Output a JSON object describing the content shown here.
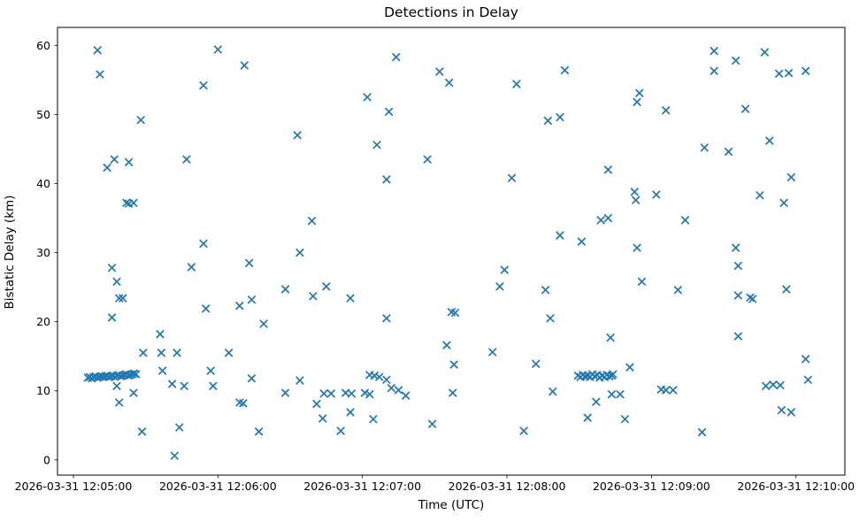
{
  "chart_data": {
    "type": "scatter",
    "title": "Detections in Delay",
    "xlabel": "Time (UTC)",
    "ylabel": "Bistatic Delay (km)",
    "marker": "x",
    "marker_color": "#1f77b4",
    "grid": false,
    "x_axis_note": "x values are seconds after 2026-03-31 12:05:00 UTC",
    "xlim_seconds": [
      -6.6,
      320.3
    ],
    "ylim": [
      -2.2,
      62.6
    ],
    "xtick_seconds": [
      0,
      60,
      120,
      180,
      240,
      300
    ],
    "xtick_labels": [
      "2026-03-31 12:05:00",
      "2026-03-31 12:06:00",
      "2026-03-31 12:07:00",
      "2026-03-31 12:08:00",
      "2026-03-31 12:09:00",
      "2026-03-31 12:10:00"
    ],
    "ytick_values": [
      0,
      10,
      20,
      30,
      40,
      50,
      60
    ],
    "ytick_labels": [
      "0",
      "10",
      "20",
      "30",
      "40",
      "50",
      "60"
    ],
    "points": [
      [
        6,
        11.9
      ],
      [
        6.8,
        12.0
      ],
      [
        7.6,
        11.8
      ],
      [
        8.4,
        12.0
      ],
      [
        9.2,
        12.1
      ],
      [
        10,
        11.9
      ],
      [
        10.8,
        12.0
      ],
      [
        11.6,
        12.1
      ],
      [
        12.4,
        12.0
      ],
      [
        13.2,
        12.1
      ],
      [
        14,
        12.2
      ],
      [
        14.8,
        12.0
      ],
      [
        15.6,
        12.1
      ],
      [
        16.4,
        12.2
      ],
      [
        17.2,
        12.0
      ],
      [
        18,
        12.2
      ],
      [
        18.8,
        12.3
      ],
      [
        19.6,
        12.1
      ],
      [
        20.4,
        12.2
      ],
      [
        21.2,
        12.3
      ],
      [
        22,
        12.4
      ],
      [
        22.8,
        12.2
      ],
      [
        23.6,
        12.3
      ],
      [
        24.4,
        12.4
      ],
      [
        25.2,
        12.5
      ],
      [
        26,
        12.4
      ],
      [
        209.5,
        12.2
      ],
      [
        210.5,
        12.0
      ],
      [
        211.5,
        12.3
      ],
      [
        212.5,
        12.1
      ],
      [
        213.5,
        12.2
      ],
      [
        214.5,
        12.0
      ],
      [
        215.5,
        12.4
      ],
      [
        216.5,
        12.1
      ],
      [
        217.5,
        12.3
      ],
      [
        218.5,
        11.9
      ],
      [
        219.5,
        12.2
      ],
      [
        220.5,
        12.0
      ],
      [
        221.5,
        12.3
      ],
      [
        222.5,
        12.1
      ],
      [
        223.5,
        12.2
      ],
      [
        224,
        12.4
      ],
      [
        123,
        12.3
      ],
      [
        125,
        12.2
      ],
      [
        127,
        12.0
      ],
      [
        130,
        11.6
      ],
      [
        10,
        59.3
      ],
      [
        11,
        55.8
      ],
      [
        14,
        42.3
      ],
      [
        16,
        27.8
      ],
      [
        16,
        20.6
      ],
      [
        17,
        43.5
      ],
      [
        18,
        25.8
      ],
      [
        18,
        10.7
      ],
      [
        19,
        8.3
      ],
      [
        19,
        23.4
      ],
      [
        20.5,
        23.4
      ],
      [
        22,
        37.2
      ],
      [
        23,
        37.1
      ],
      [
        23,
        43.1
      ],
      [
        25,
        37.2
      ],
      [
        25,
        9.7
      ],
      [
        28,
        49.2
      ],
      [
        28.5,
        4.1
      ],
      [
        29,
        15.5
      ],
      [
        36,
        18.2
      ],
      [
        36.5,
        15.5
      ],
      [
        37,
        12.9
      ],
      [
        41,
        11.0
      ],
      [
        42,
        0.6
      ],
      [
        43,
        15.5
      ],
      [
        44,
        4.7
      ],
      [
        46,
        10.7
      ],
      [
        47,
        43.5
      ],
      [
        49,
        27.9
      ],
      [
        54,
        54.2
      ],
      [
        54,
        31.3
      ],
      [
        55,
        21.9
      ],
      [
        57,
        12.9
      ],
      [
        58,
        10.7
      ],
      [
        60,
        59.4
      ],
      [
        64.5,
        15.5
      ],
      [
        69,
        22.3
      ],
      [
        69,
        8.3
      ],
      [
        70.5,
        8.2
      ],
      [
        71,
        57.1
      ],
      [
        73,
        28.5
      ],
      [
        74,
        23.2
      ],
      [
        74,
        11.8
      ],
      [
        77,
        4.1
      ],
      [
        79,
        19.7
      ],
      [
        88,
        24.7
      ],
      [
        88,
        9.7
      ],
      [
        93,
        47.0
      ],
      [
        94,
        30.0
      ],
      [
        94,
        11.5
      ],
      [
        99,
        34.6
      ],
      [
        99.5,
        23.7
      ],
      [
        101,
        8.1
      ],
      [
        103.5,
        6.0
      ],
      [
        104,
        9.6
      ],
      [
        105,
        25.1
      ],
      [
        107,
        9.6
      ],
      [
        111,
        4.2
      ],
      [
        113,
        9.7
      ],
      [
        115,
        23.4
      ],
      [
        115,
        6.9
      ],
      [
        115.5,
        9.6
      ],
      [
        121,
        9.7
      ],
      [
        122,
        52.5
      ],
      [
        123,
        9.5
      ],
      [
        124.5,
        5.9
      ],
      [
        126,
        45.6
      ],
      [
        130,
        40.6
      ],
      [
        130,
        20.5
      ],
      [
        131,
        50.4
      ],
      [
        132,
        10.4
      ],
      [
        134,
        58.3
      ],
      [
        135,
        10.1
      ],
      [
        138,
        9.3
      ],
      [
        147,
        43.5
      ],
      [
        149,
        5.2
      ],
      [
        152,
        56.2
      ],
      [
        155,
        16.6
      ],
      [
        156,
        54.6
      ],
      [
        157,
        21.4
      ],
      [
        157.5,
        9.7
      ],
      [
        158,
        13.8
      ],
      [
        158.5,
        21.3
      ],
      [
        174,
        15.6
      ],
      [
        177,
        25.1
      ],
      [
        179,
        27.5
      ],
      [
        182,
        40.8
      ],
      [
        184,
        54.4
      ],
      [
        187,
        4.2
      ],
      [
        192,
        13.9
      ],
      [
        196,
        24.6
      ],
      [
        197,
        49.1
      ],
      [
        198,
        20.5
      ],
      [
        199,
        9.9
      ],
      [
        202,
        49.6
      ],
      [
        202,
        32.5
      ],
      [
        204,
        56.4
      ],
      [
        211,
        31.6
      ],
      [
        213.5,
        6.1
      ],
      [
        217,
        8.4
      ],
      [
        219,
        34.7
      ],
      [
        222,
        35.0
      ],
      [
        222,
        42.0
      ],
      [
        223,
        17.7
      ],
      [
        223.5,
        9.5
      ],
      [
        227,
        9.5
      ],
      [
        229,
        5.9
      ],
      [
        231,
        13.4
      ],
      [
        233,
        38.8
      ],
      [
        233.5,
        37.6
      ],
      [
        234,
        51.8
      ],
      [
        234,
        30.7
      ],
      [
        235,
        53.1
      ],
      [
        236,
        25.8
      ],
      [
        242,
        38.4
      ],
      [
        244,
        10.2
      ],
      [
        246,
        10.1
      ],
      [
        249,
        10.1
      ],
      [
        246,
        50.6
      ],
      [
        251,
        24.6
      ],
      [
        254,
        34.7
      ],
      [
        261,
        4.0
      ],
      [
        262,
        45.2
      ],
      [
        266,
        59.2
      ],
      [
        266,
        56.3
      ],
      [
        272,
        44.6
      ],
      [
        275,
        57.8
      ],
      [
        275,
        30.7
      ],
      [
        276,
        28.1
      ],
      [
        276,
        23.8
      ],
      [
        276,
        17.9
      ],
      [
        279,
        50.8
      ],
      [
        281,
        23.5
      ],
      [
        282,
        23.3
      ],
      [
        285,
        38.3
      ],
      [
        287,
        59.0
      ],
      [
        287.5,
        10.7
      ],
      [
        289,
        46.2
      ],
      [
        290.5,
        10.9
      ],
      [
        293,
        55.9
      ],
      [
        293.5,
        10.8
      ],
      [
        294,
        7.2
      ],
      [
        295,
        37.2
      ],
      [
        296,
        24.7
      ],
      [
        297,
        56.0
      ],
      [
        298,
        40.9
      ],
      [
        298,
        6.9
      ],
      [
        304,
        56.3
      ],
      [
        304,
        14.6
      ],
      [
        305,
        11.6
      ]
    ]
  }
}
